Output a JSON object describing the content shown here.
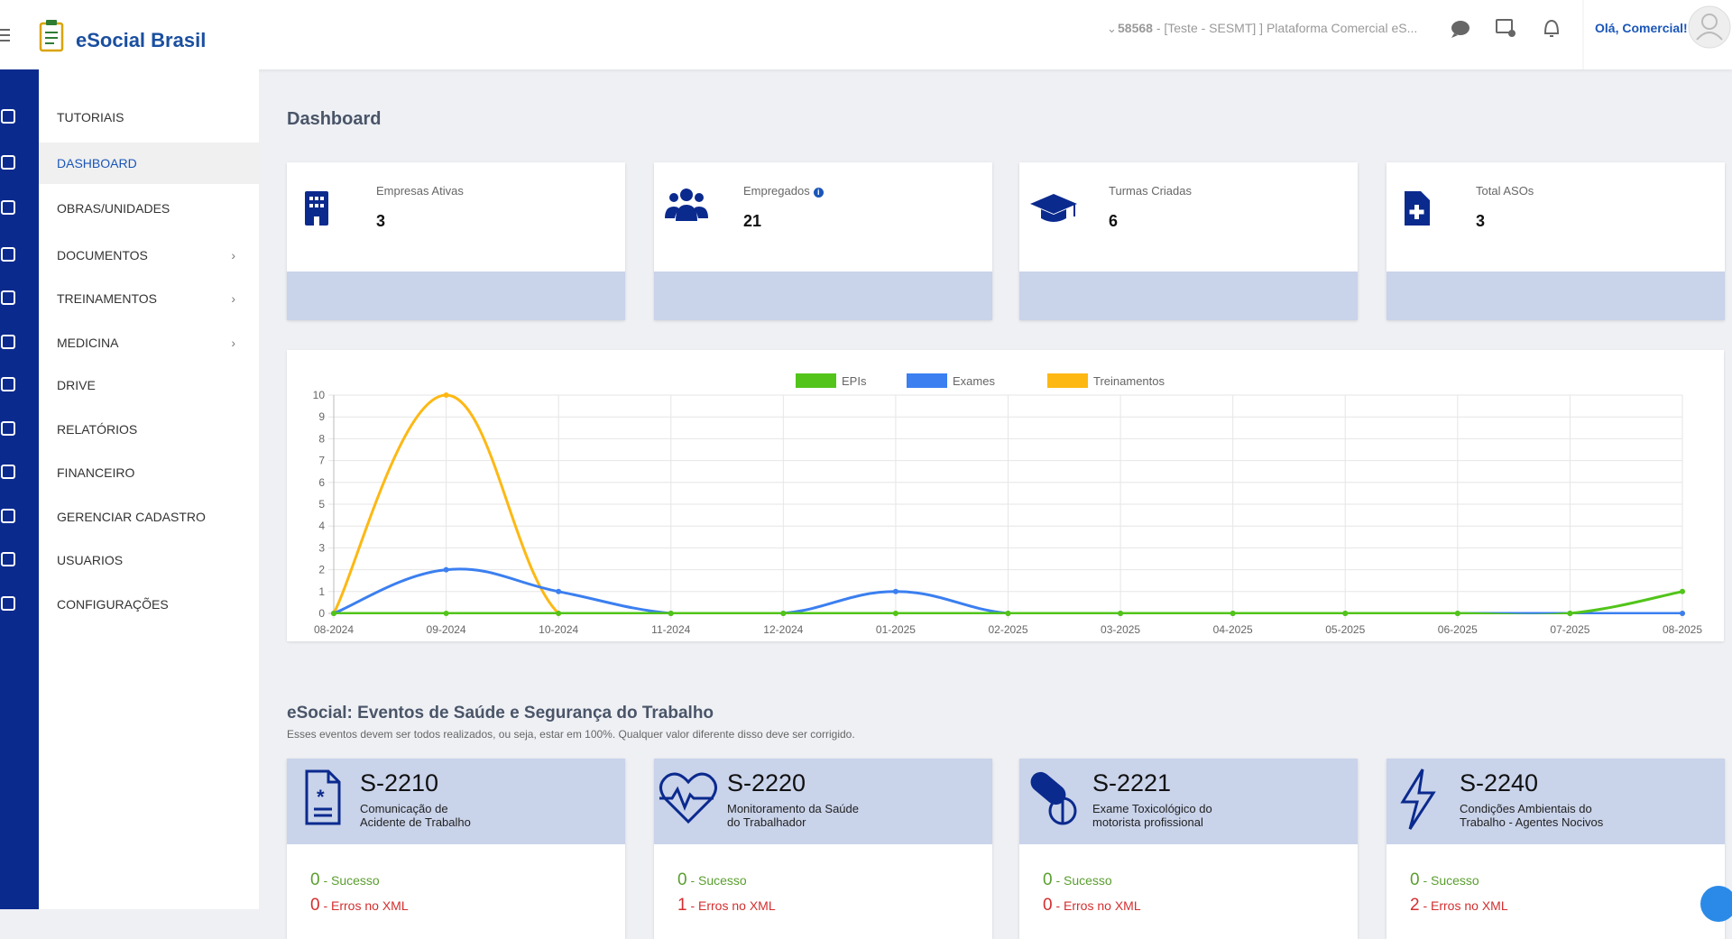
{
  "header": {
    "brand": "eSocial Brasil",
    "account_id": "58568",
    "account_context": "- [Teste - SESMT] ] Plataforma Comercial eS...",
    "greeting": "Olá, Comercial!"
  },
  "sidebar": {
    "active_item": 1,
    "items": [
      {
        "label": "TUTORIAIS"
      },
      {
        "label": "DASHBOARD"
      },
      {
        "label": "OBRAS/UNIDADES"
      },
      {
        "label": "DOCUMENTOS",
        "expandable": true
      },
      {
        "label": "TREINAMENTOS",
        "expandable": true
      },
      {
        "label": "MEDICINA",
        "expandable": true
      },
      {
        "label": "DRIVE"
      },
      {
        "label": "RELATÓRIOS"
      },
      {
        "label": "FINANCEIRO"
      },
      {
        "label": "GERENCIAR CADASTRO"
      },
      {
        "label": "USUARIOS"
      },
      {
        "label": "CONFIGURAÇÕES"
      }
    ]
  },
  "page": {
    "title": "Dashboard"
  },
  "cards": [
    {
      "label": "Empresas Ativas",
      "value": 3
    },
    {
      "label": "Empregados",
      "value": 21
    },
    {
      "label": "Turmas Criadas",
      "value": 6
    },
    {
      "label": "Total ASOs",
      "value": 3
    }
  ],
  "chart": {
    "type": "line",
    "categories": [
      "08-2024",
      "09-2024",
      "10-2024",
      "11-2024",
      "12-2024",
      "01-2025",
      "02-2025",
      "03-2025",
      "04-2025",
      "05-2025",
      "06-2025",
      "07-2025",
      "08-2025"
    ],
    "series": [
      {
        "name": "EPIs",
        "color": "#52c41a",
        "values": [
          0,
          0,
          0,
          0,
          0,
          0,
          0,
          0,
          0,
          0,
          0,
          0,
          1
        ]
      },
      {
        "name": "Exames",
        "color": "#3b7ff0",
        "values": [
          0,
          2,
          1,
          0,
          0,
          1,
          0,
          0,
          0,
          0,
          0,
          0,
          0
        ]
      },
      {
        "name": "Treinamentos",
        "color": "#fdb813",
        "values": [
          0,
          10,
          0,
          0,
          0,
          0,
          0,
          0,
          0,
          0,
          0,
          0,
          0
        ]
      }
    ],
    "ylim": [
      0,
      10
    ],
    "yticks": [
      0,
      1,
      2,
      3,
      4,
      5,
      6,
      7,
      8,
      9,
      10
    ],
    "grid": true
  },
  "events": {
    "title": "eSocial: Eventos de Saúde e Segurança do Trabalho",
    "subtitle": "Esses eventos devem ser todos realizados, ou seja, estar em 100%. Qualquer valor diferente disso deve ser corrigido.",
    "success_label": "- Sucesso",
    "error_label": "- Erros no XML",
    "items": [
      {
        "code": "S-2210",
        "description": [
          "Comunicação de",
          "Acidente de Trabalho"
        ],
        "success": 0,
        "errors": 0
      },
      {
        "code": "S-2220",
        "description": [
          "Monitoramento da Saúde",
          "do Trabalhador"
        ],
        "success": 0,
        "errors": 1
      },
      {
        "code": "S-2221",
        "description": [
          "Exame Toxicológico do",
          "motorista profissional"
        ],
        "success": 0,
        "errors": 0
      },
      {
        "code": "S-2240",
        "description": [
          "Condições Ambientais do",
          "Trabalho - Agentes Nocivos"
        ],
        "success": 0,
        "errors": 2
      }
    ]
  }
}
